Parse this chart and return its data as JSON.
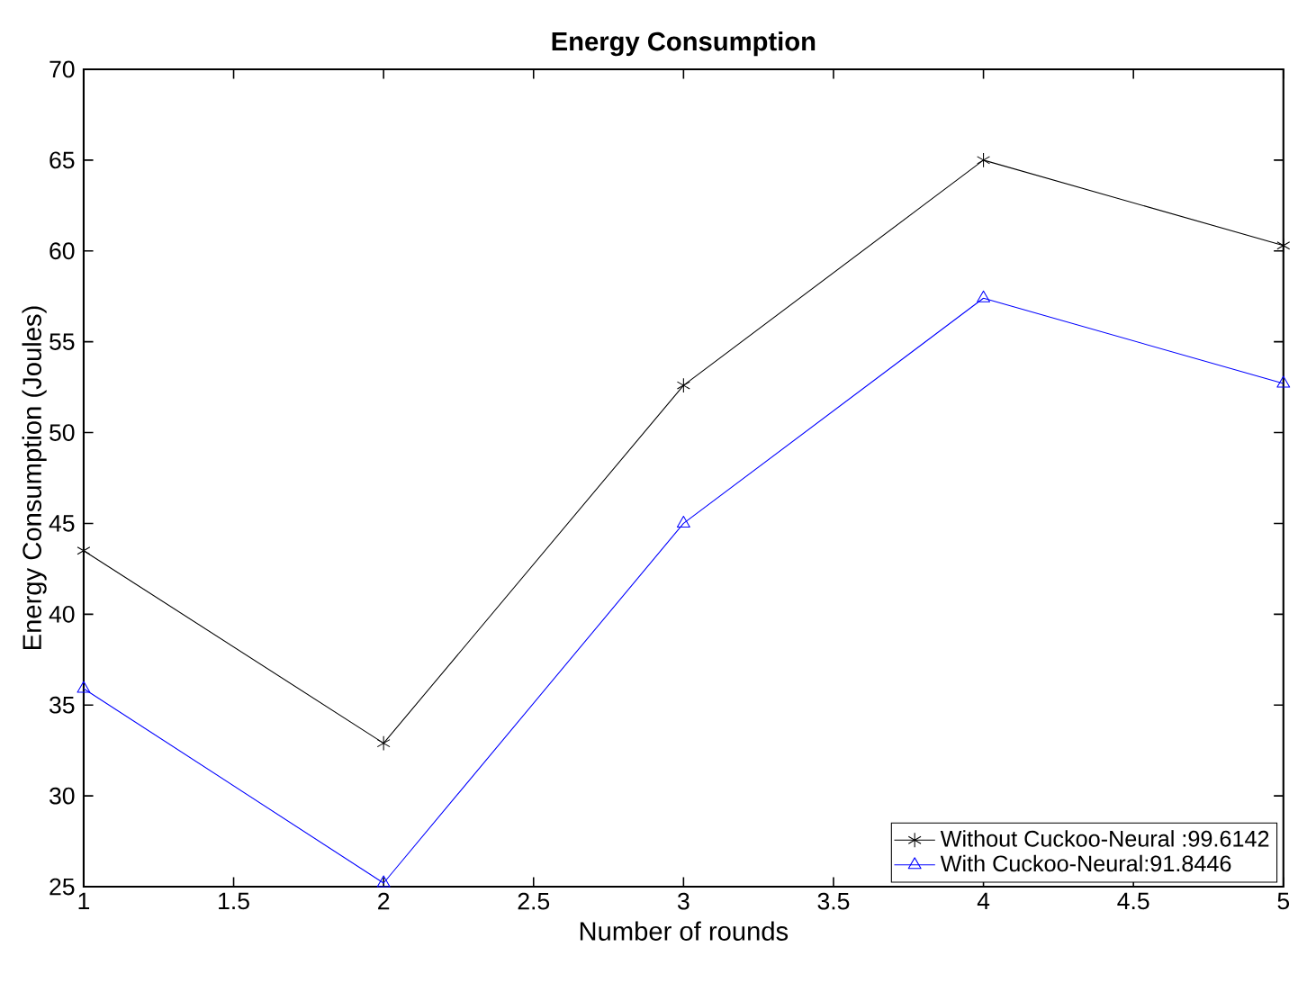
{
  "chart_data": {
    "type": "line",
    "title": "Energy Consumption",
    "xlabel": "Number of rounds",
    "ylabel": "Energy Consumption (Joules)",
    "x": [
      1,
      2,
      3,
      4,
      5
    ],
    "series": [
      {
        "name": "Without Cuckoo-Neural :99.6142",
        "color": "#000000",
        "marker": "cross",
        "values": [
          43.5,
          32.9,
          52.6,
          65.0,
          60.3
        ]
      },
      {
        "name": "With Cuckoo-Neural:91.8446",
        "color": "#0000ff",
        "marker": "triangle",
        "values": [
          35.9,
          25.2,
          45.0,
          57.4,
          52.7
        ]
      }
    ],
    "xlim": [
      1,
      5
    ],
    "xticks": [
      1,
      1.5,
      2,
      2.5,
      3,
      3.5,
      4,
      4.5,
      5
    ],
    "ylim": [
      25,
      70
    ],
    "yticks": [
      25,
      30,
      35,
      40,
      45,
      50,
      55,
      60,
      65,
      70
    ],
    "legend": "bottom right",
    "line_style": "solid"
  }
}
